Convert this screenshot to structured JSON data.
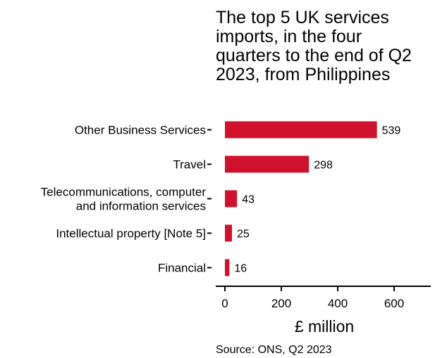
{
  "chart_data": {
    "type": "bar",
    "orientation": "horizontal",
    "title_lines": [
      "The top 5 UK services",
      "imports, in the four",
      "quarters to the end of Q2",
      "2023, from Philippines"
    ],
    "categories": [
      [
        "Other Business Services"
      ],
      [
        "Travel"
      ],
      [
        "Telecommunications, computer",
        "and information services"
      ],
      [
        "Intellectual property [Note 5]"
      ],
      [
        "Financial"
      ]
    ],
    "values": [
      539,
      298,
      43,
      25,
      16
    ],
    "value_labels": [
      "539",
      "298",
      "43",
      "25",
      "16"
    ],
    "xlabel": "£ million",
    "xlim": [
      0,
      730
    ],
    "xticks": [
      0,
      200,
      400,
      600
    ],
    "xtick_labels": [
      "0",
      "200",
      "400",
      "600"
    ],
    "bar_color": "#d0112b",
    "grid": false,
    "legend": "none",
    "source": "Source: ONS, Q2 2023"
  }
}
